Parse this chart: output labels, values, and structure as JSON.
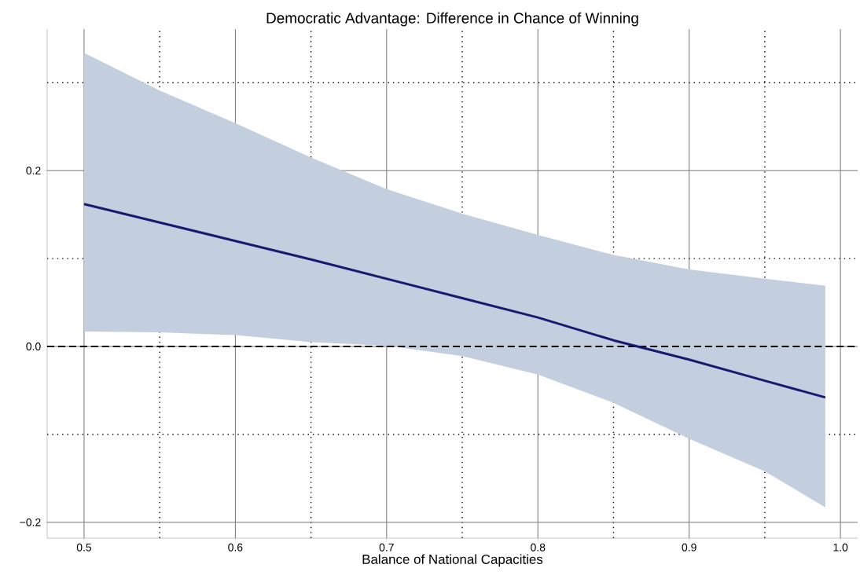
{
  "chart_data": {
    "type": "line",
    "title": "Democratic Advantage: Difference in Chance of Winning",
    "xlabel": "Balance of National Capacities",
    "x": [
      0.5,
      0.55,
      0.6,
      0.65,
      0.7,
      0.75,
      0.8,
      0.85,
      0.9,
      0.95,
      0.99
    ],
    "series": [
      {
        "color": "#191970",
        "values": [
          0.162,
          0.141,
          0.12,
          0.099,
          0.077,
          0.055,
          0.033,
          0.007,
          -0.015,
          -0.039,
          -0.058
        ],
        "lower": [
          0.017,
          0.016,
          0.013,
          0.005,
          0.001,
          -0.011,
          -0.032,
          -0.064,
          -0.105,
          -0.142,
          -0.183
        ],
        "upper": [
          0.334,
          0.291,
          0.254,
          0.215,
          0.179,
          0.151,
          0.127,
          0.104,
          0.0875,
          0.077,
          0.069
        ]
      }
    ],
    "xlim": [
      0.4756,
      1.0114
    ],
    "ylim": [
      -0.218,
      0.361
    ],
    "xticks": [
      0.5,
      {
        "value": 0.55,
        "label": null
      },
      0.6,
      {
        "value": 0.65,
        "label": null
      },
      0.7,
      {
        "value": 0.75,
        "label": null
      },
      0.8,
      {
        "value": 0.85,
        "label": null
      },
      0.9,
      {
        "value": 0.95,
        "label": null
      },
      {
        "value": 1.0,
        "label": "1.0"
      }
    ],
    "yticks": [
      {
        "value": -0.2,
        "label": "−0.2"
      },
      {
        "value": -0.1,
        "label": null
      },
      {
        "value": 0,
        "label": "0.0"
      },
      {
        "value": 0.1,
        "label": null
      },
      0.2,
      {
        "value": 0.3,
        "label": null
      }
    ],
    "ref_lines": [
      {
        "axis": "y",
        "value": 0,
        "color": "#000000",
        "line_style": "dashed"
      }
    ],
    "grid": true,
    "marker": "none",
    "line_style": "solid"
  }
}
